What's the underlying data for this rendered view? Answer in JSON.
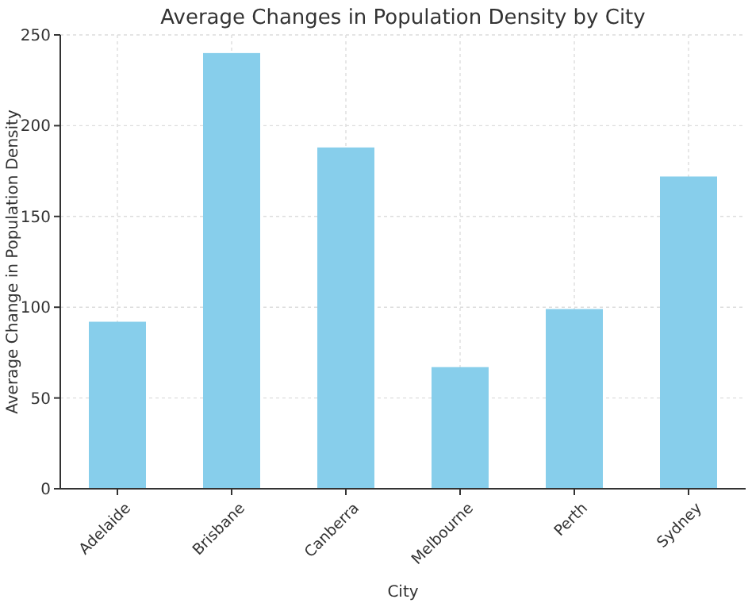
{
  "chart_data": {
    "type": "bar",
    "title": "Average Changes in Population Density by City",
    "xlabel": "City",
    "ylabel": "Average Change in Population Density",
    "categories": [
      "Adelaide",
      "Brisbane",
      "Canberra",
      "Melbourne",
      "Perth",
      "Sydney"
    ],
    "values": [
      92,
      240,
      188,
      67,
      99,
      172
    ],
    "color": "#87ceeb",
    "ylim": [
      0,
      250
    ],
    "yticks": [
      0,
      50,
      100,
      150,
      200,
      250
    ],
    "grid": true
  }
}
